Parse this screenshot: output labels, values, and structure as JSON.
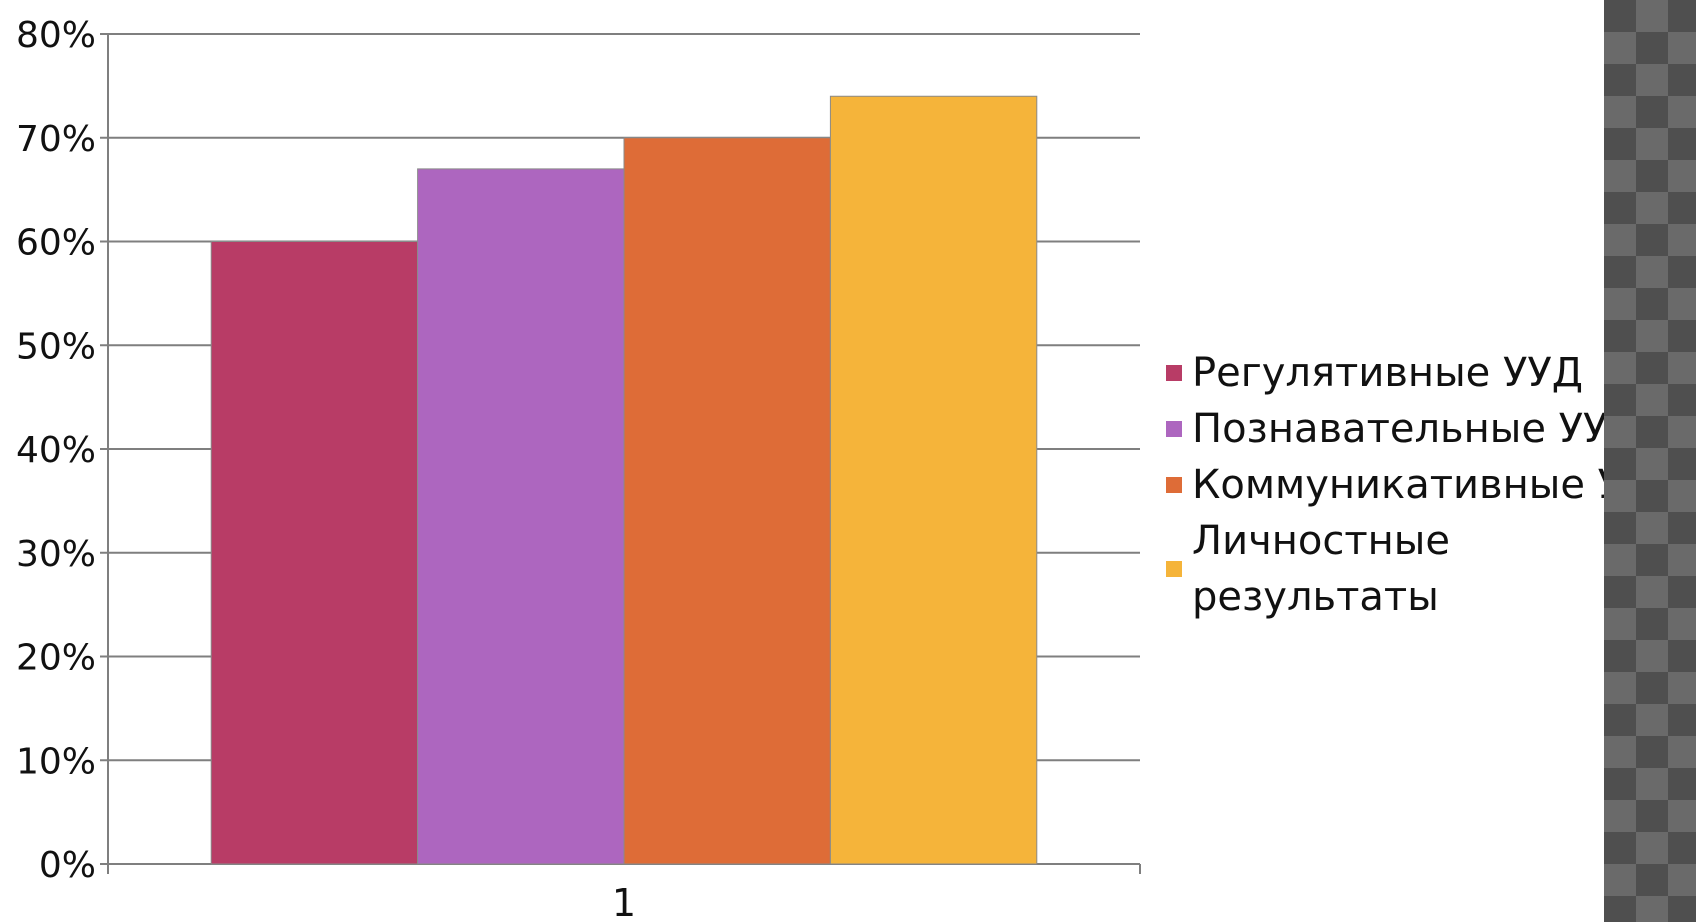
{
  "chart_data": {
    "type": "bar",
    "categories": [
      "1"
    ],
    "series": [
      {
        "name": "Регулятивные УУД",
        "values": [
          60
        ],
        "color": "#b83c66"
      },
      {
        "name": "Познавательные УУД",
        "values": [
          67
        ],
        "color": "#ad66bf"
      },
      {
        "name": "Коммуникативные Ууд",
        "values": [
          70
        ],
        "color": "#de6c37"
      },
      {
        "name": "Личностные результаты",
        "values": [
          74
        ],
        "color": "#f5b43a"
      }
    ],
    "ylim": [
      0,
      80
    ],
    "yticks": [
      0,
      10,
      20,
      30,
      40,
      50,
      60,
      70,
      80
    ],
    "ytick_labels": [
      "0%",
      "10%",
      "20%",
      "30%",
      "40%",
      "50%",
      "60%",
      "70%",
      "80%"
    ],
    "grid": true,
    "legend_position": "right",
    "title": "",
    "xlabel": "",
    "ylabel": ""
  },
  "decor": {
    "side_pattern_colors": [
      "#4f4f4f",
      "#6a6a6a"
    ]
  }
}
